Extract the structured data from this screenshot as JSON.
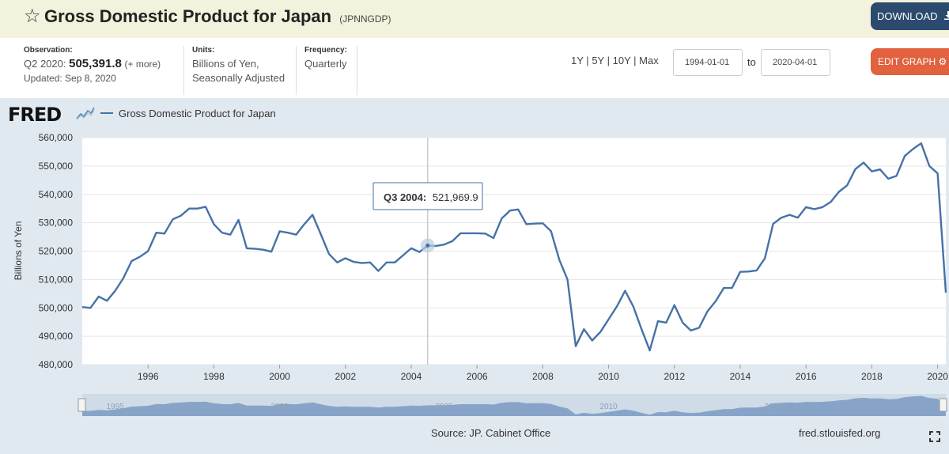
{
  "header": {
    "title": "Gross Domestic Product for Japan",
    "series_code": "(JPNNGDP)",
    "download_label": "DOWNLOAD",
    "star_icon": "star-icon",
    "download_icon": "download-icon"
  },
  "meta": {
    "observation_label": "Observation:",
    "observation_period": "Q2 2020:",
    "observation_value": "505,391.8",
    "observation_more": "(+ more)",
    "updated": "Updated: Sep 8, 2020",
    "units_label": "Units:",
    "units_line1": "Billions of Yen,",
    "units_line2": "Seasonally Adjusted",
    "frequency_label": "Frequency:",
    "frequency_value": "Quarterly"
  },
  "controls": {
    "range_1y": "1Y",
    "range_5y": "5Y",
    "range_10y": "10Y",
    "range_max": "Max",
    "sep": "|",
    "start_date": "1994-01-01",
    "to_label": "to",
    "end_date": "2020-04-01",
    "edit_label": "EDIT GRAPH",
    "edit_icon": "gear-icon"
  },
  "legend": {
    "logo": "FRED",
    "series_label": "Gross Domestic Product for Japan",
    "color": "#4572a7"
  },
  "tooltip": {
    "period": "Q3 2004:",
    "value": "521,969.9"
  },
  "footer": {
    "source": "Source: JP. Cabinet Office",
    "site": "fred.stlouisfed.org",
    "expand_icon": "expand-icon"
  },
  "navigator": {
    "labels": [
      "1995",
      "2000",
      "2005",
      "2010",
      "2015"
    ]
  },
  "chart_data": {
    "type": "line",
    "title": "",
    "xlabel": "",
    "ylabel": "Billions of Yen",
    "ylim": [
      480000,
      560000
    ],
    "xlim": [
      "1994-01-01",
      "2020-04-01"
    ],
    "y_ticks": [
      "480,000",
      "490,000",
      "500,000",
      "510,000",
      "520,000",
      "530,000",
      "540,000",
      "550,000",
      "560,000"
    ],
    "x_ticks": [
      "1996",
      "1998",
      "2000",
      "2002",
      "2004",
      "2006",
      "2008",
      "2010",
      "2012",
      "2014",
      "2016",
      "2018",
      "2020"
    ],
    "grid": true,
    "series": [
      {
        "name": "Gross Domestic Product for Japan",
        "color": "#4572a7",
        "x": [
          "1994-01-01",
          "1994-04-01",
          "1994-07-01",
          "1994-10-01",
          "1995-01-01",
          "1995-04-01",
          "1995-07-01",
          "1995-10-01",
          "1996-01-01",
          "1996-04-01",
          "1996-07-01",
          "1996-10-01",
          "1997-01-01",
          "1997-04-01",
          "1997-07-01",
          "1997-10-01",
          "1998-01-01",
          "1998-04-01",
          "1998-07-01",
          "1998-10-01",
          "1999-01-01",
          "1999-04-01",
          "1999-07-01",
          "1999-10-01",
          "2000-01-01",
          "2000-04-01",
          "2000-07-01",
          "2000-10-01",
          "2001-01-01",
          "2001-04-01",
          "2001-07-01",
          "2001-10-01",
          "2002-01-01",
          "2002-04-01",
          "2002-07-01",
          "2002-10-01",
          "2003-01-01",
          "2003-04-01",
          "2003-07-01",
          "2003-10-01",
          "2004-01-01",
          "2004-04-01",
          "2004-07-01",
          "2004-10-01",
          "2005-01-01",
          "2005-04-01",
          "2005-07-01",
          "2005-10-01",
          "2006-01-01",
          "2006-04-01",
          "2006-07-01",
          "2006-10-01",
          "2007-01-01",
          "2007-04-01",
          "2007-07-01",
          "2007-10-01",
          "2008-01-01",
          "2008-04-01",
          "2008-07-01",
          "2008-10-01",
          "2009-01-01",
          "2009-04-01",
          "2009-07-01",
          "2009-10-01",
          "2010-01-01",
          "2010-04-01",
          "2010-07-01",
          "2010-10-01",
          "2011-01-01",
          "2011-04-01",
          "2011-07-01",
          "2011-10-01",
          "2012-01-01",
          "2012-04-01",
          "2012-07-01",
          "2012-10-01",
          "2013-01-01",
          "2013-04-01",
          "2013-07-01",
          "2013-10-01",
          "2014-01-01",
          "2014-04-01",
          "2014-07-01",
          "2014-10-01",
          "2015-01-01",
          "2015-04-01",
          "2015-07-01",
          "2015-10-01",
          "2016-01-01",
          "2016-04-01",
          "2016-07-01",
          "2016-10-01",
          "2017-01-01",
          "2017-04-01",
          "2017-07-01",
          "2017-10-01",
          "2018-01-01",
          "2018-04-01",
          "2018-07-01",
          "2018-10-01",
          "2019-01-01",
          "2019-04-01",
          "2019-07-01",
          "2019-10-01",
          "2020-01-01",
          "2020-04-01"
        ],
        "values": [
          500300,
          500000,
          504000,
          502500,
          506000,
          510500,
          516500,
          518000,
          520000,
          526500,
          526200,
          531200,
          532500,
          535000,
          535000,
          535600,
          529500,
          526500,
          525800,
          531000,
          521000,
          520800,
          520500,
          519800,
          527000,
          526500,
          525800,
          529500,
          532800,
          526000,
          519000,
          516000,
          517500,
          516200,
          515800,
          516000,
          513000,
          516000,
          516000,
          518500,
          521000,
          519700,
          521970,
          521800,
          522300,
          523500,
          526300,
          526300,
          526300,
          526200,
          524600,
          531500,
          534300,
          534700,
          529500,
          529700,
          529800,
          527000,
          517000,
          510000,
          486500,
          492500,
          488500,
          491500,
          496000,
          500500,
          506000,
          500500,
          492500,
          485000,
          495300,
          494800,
          501000,
          494800,
          492000,
          493000,
          498700,
          502300,
          507000,
          507000,
          512700,
          512800,
          513200,
          517500,
          529600,
          531800,
          532800,
          531800,
          535500,
          534800,
          535500,
          537300,
          540900,
          543200,
          548900,
          551200,
          548100,
          548800,
          545500,
          546500,
          553500,
          556000,
          558000,
          550000,
          547400,
          505392
        ]
      }
    ],
    "highlight": {
      "x": "2004-07-01",
      "y": 521969.9
    }
  }
}
